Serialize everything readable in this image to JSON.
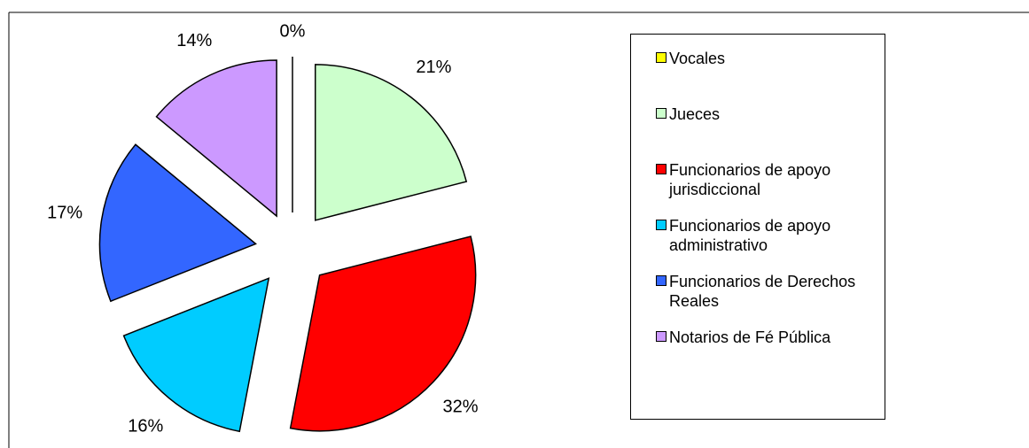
{
  "chart_data": {
    "type": "pie",
    "categories": [
      "Vocales",
      "Jueces",
      "Funcionarios de apoyo jurisdiccional",
      "Funcionarios de apoyo administrativo",
      "Funcionarios de Derechos Reales",
      "Notarios de Fé Pública"
    ],
    "values": [
      0,
      21,
      32,
      16,
      17,
      14
    ],
    "value_labels": [
      "0%",
      "21%",
      "32%",
      "16%",
      "17%",
      "14%"
    ],
    "colors": [
      "#ffff00",
      "#ccffcc",
      "#ff0000",
      "#00ccff",
      "#3366ff",
      "#cc99ff"
    ],
    "legend": "right"
  }
}
